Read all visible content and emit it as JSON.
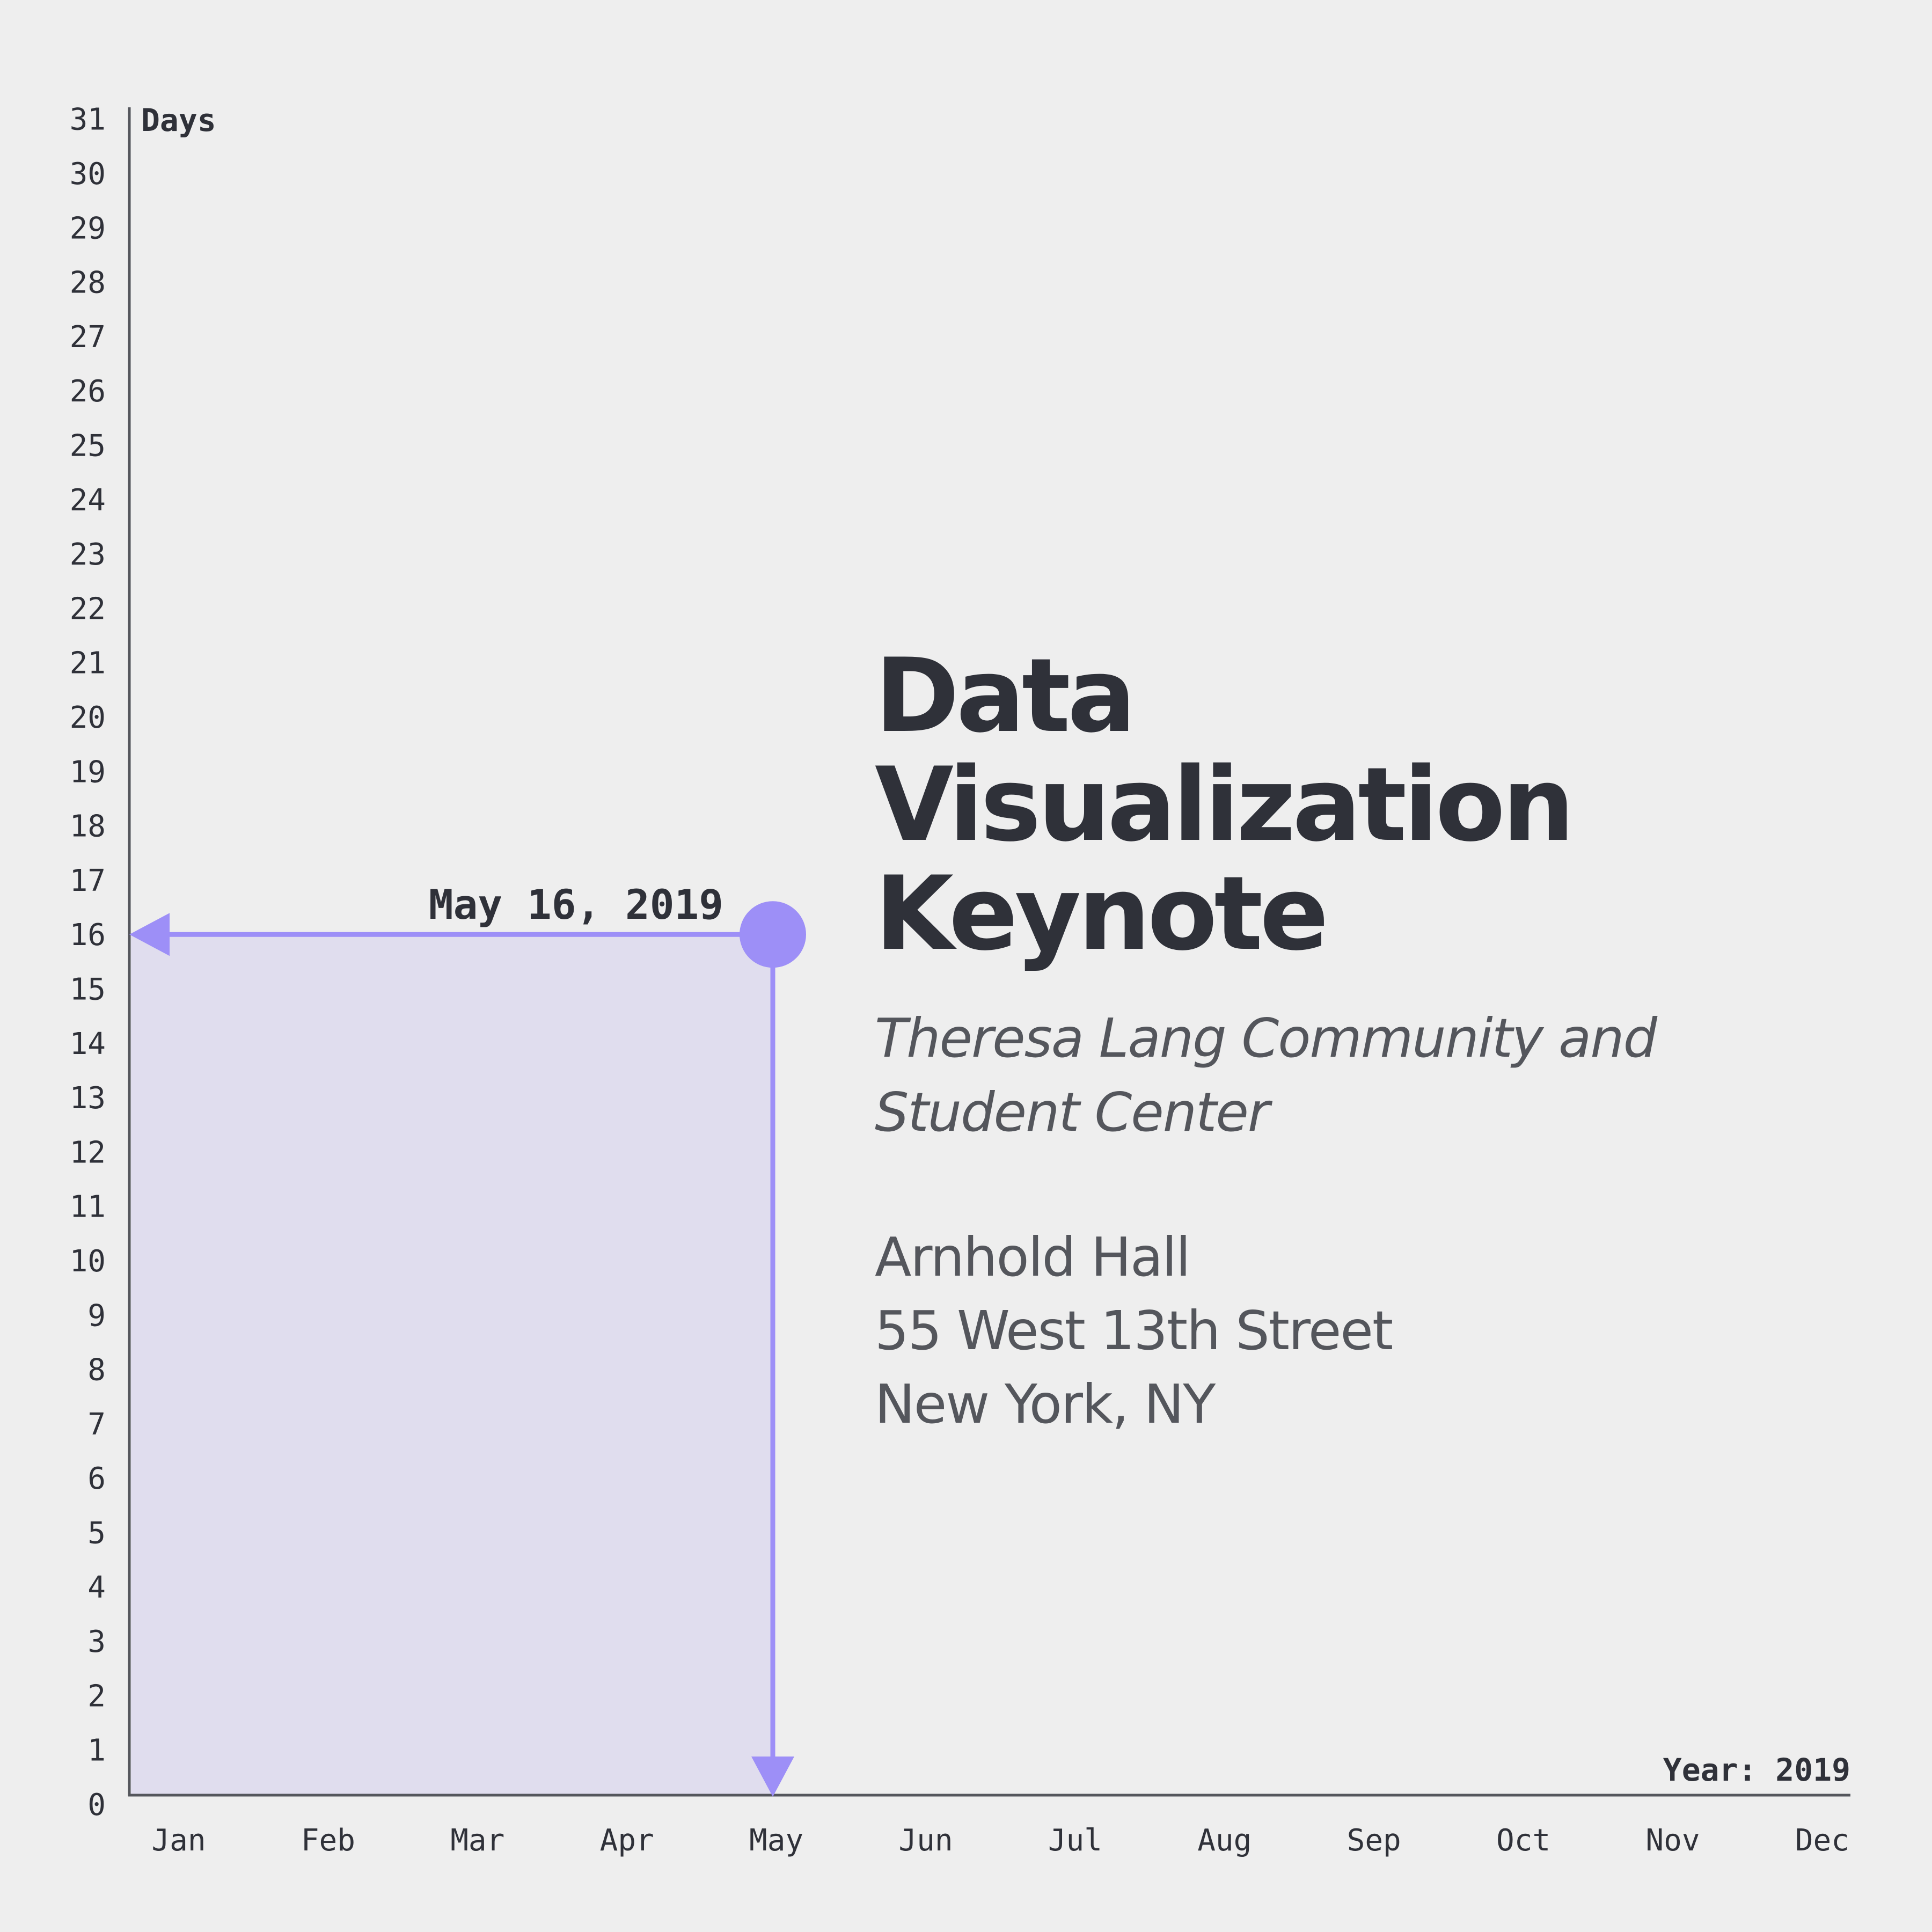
{
  "chart_data": {
    "type": "scatter",
    "title": "",
    "xlabel": "Year: 2019",
    "ylabel": "Days",
    "x_categories": [
      "Jan",
      "Feb",
      "Mar",
      "Apr",
      "May",
      "Jun",
      "Jul",
      "Aug",
      "Sep",
      "Oct",
      "Nov",
      "Dec"
    ],
    "y_ticks": [
      0,
      1,
      2,
      3,
      4,
      5,
      6,
      7,
      8,
      9,
      10,
      11,
      12,
      13,
      14,
      15,
      16,
      17,
      18,
      19,
      20,
      21,
      22,
      23,
      24,
      25,
      26,
      27,
      28,
      29,
      30,
      31
    ],
    "ylim": [
      0,
      31
    ],
    "grid": false,
    "points": [
      {
        "x": "May",
        "y": 16,
        "label": "May 16, 2019"
      }
    ],
    "colors": {
      "accent": "#9d8ff7",
      "fill": "#e0ddee",
      "axis": "#54565c",
      "text": "#2f3139"
    }
  },
  "event": {
    "title_lines": [
      "Data",
      "Visualization",
      "Keynote"
    ],
    "venue_lines": [
      "Theresa Lang Community and",
      "Student Center"
    ],
    "address_lines": [
      "Arnhold Hall",
      "55 West 13th Street",
      "New York, NY"
    ]
  }
}
